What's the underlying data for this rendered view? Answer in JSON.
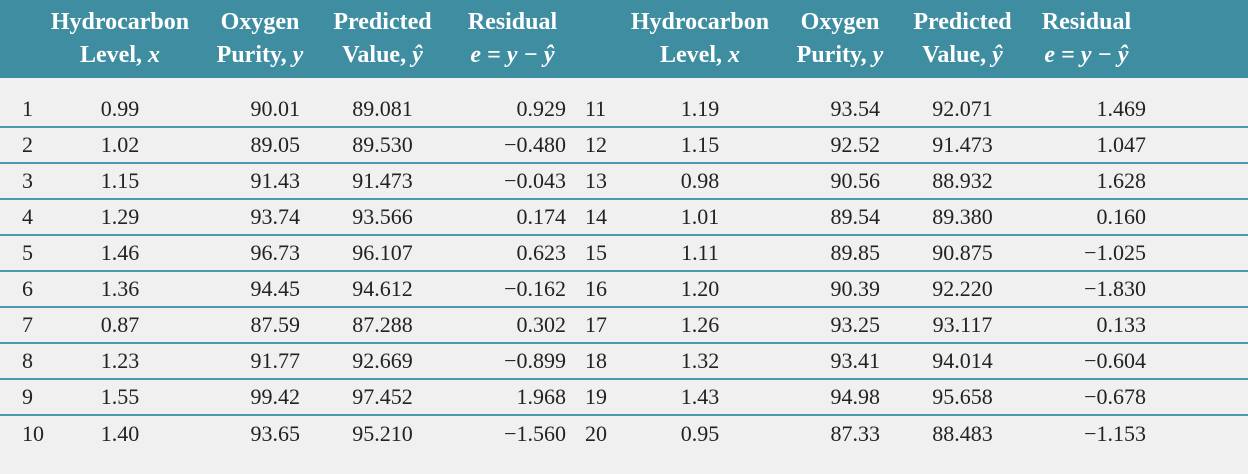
{
  "table": {
    "headers": {
      "hydro_line1": "Hydrocarbon",
      "hydro_line2": "Level, ",
      "hydro_sym": "x",
      "oxygen_line1": "Oxygen",
      "oxygen_line2": "Purity, ",
      "oxygen_sym": "y",
      "pred_line1": "Predicted",
      "pred_line2": "Value, ",
      "pred_sym": "ŷ",
      "resid_line1": "Residual",
      "resid_line2": "e = y − ŷ"
    },
    "rows": [
      {
        "left": {
          "i": "1",
          "x": "0.99",
          "y": "90.01",
          "pred": "89.081",
          "e": "0.929"
        },
        "right": {
          "i": "11",
          "x": "1.19",
          "y": "93.54",
          "pred": "92.071",
          "e": "1.469"
        }
      },
      {
        "left": {
          "i": "2",
          "x": "1.02",
          "y": "89.05",
          "pred": "89.530",
          "e": "−0.480"
        },
        "right": {
          "i": "12",
          "x": "1.15",
          "y": "92.52",
          "pred": "91.473",
          "e": "1.047"
        }
      },
      {
        "left": {
          "i": "3",
          "x": "1.15",
          "y": "91.43",
          "pred": "91.473",
          "e": "−0.043"
        },
        "right": {
          "i": "13",
          "x": "0.98",
          "y": "90.56",
          "pred": "88.932",
          "e": "1.628"
        }
      },
      {
        "left": {
          "i": "4",
          "x": "1.29",
          "y": "93.74",
          "pred": "93.566",
          "e": "0.174"
        },
        "right": {
          "i": "14",
          "x": "1.01",
          "y": "89.54",
          "pred": "89.380",
          "e": "0.160"
        }
      },
      {
        "left": {
          "i": "5",
          "x": "1.46",
          "y": "96.73",
          "pred": "96.107",
          "e": "0.623"
        },
        "right": {
          "i": "15",
          "x": "1.11",
          "y": "89.85",
          "pred": "90.875",
          "e": "−1.025"
        }
      },
      {
        "left": {
          "i": "6",
          "x": "1.36",
          "y": "94.45",
          "pred": "94.612",
          "e": "−0.162"
        },
        "right": {
          "i": "16",
          "x": "1.20",
          "y": "90.39",
          "pred": "92.220",
          "e": "−1.830"
        }
      },
      {
        "left": {
          "i": "7",
          "x": "0.87",
          "y": "87.59",
          "pred": "87.288",
          "e": "0.302"
        },
        "right": {
          "i": "17",
          "x": "1.26",
          "y": "93.25",
          "pred": "93.117",
          "e": "0.133"
        }
      },
      {
        "left": {
          "i": "8",
          "x": "1.23",
          "y": "91.77",
          "pred": "92.669",
          "e": "−0.899"
        },
        "right": {
          "i": "18",
          "x": "1.32",
          "y": "93.41",
          "pred": "94.014",
          "e": "−0.604"
        }
      },
      {
        "left": {
          "i": "9",
          "x": "1.55",
          "y": "99.42",
          "pred": "97.452",
          "e": "1.968"
        },
        "right": {
          "i": "19",
          "x": "1.43",
          "y": "94.98",
          "pred": "95.658",
          "e": "−0.678"
        }
      },
      {
        "left": {
          "i": "10",
          "x": "1.40",
          "y": "93.65",
          "pred": "95.210",
          "e": "−1.560"
        },
        "right": {
          "i": "20",
          "x": "0.95",
          "y": "87.33",
          "pred": "88.483",
          "e": "−1.153"
        }
      }
    ]
  }
}
